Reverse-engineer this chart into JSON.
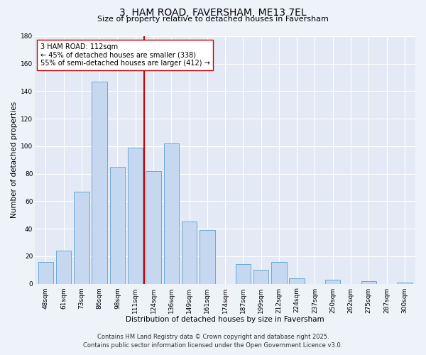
{
  "title": "3, HAM ROAD, FAVERSHAM, ME13 7EL",
  "subtitle": "Size of property relative to detached houses in Faversham",
  "xlabel": "Distribution of detached houses by size in Faversham",
  "ylabel": "Number of detached properties",
  "bar_labels": [
    "48sqm",
    "61sqm",
    "73sqm",
    "86sqm",
    "98sqm",
    "111sqm",
    "124sqm",
    "136sqm",
    "149sqm",
    "161sqm",
    "174sqm",
    "187sqm",
    "199sqm",
    "212sqm",
    "224sqm",
    "237sqm",
    "250sqm",
    "262sqm",
    "275sqm",
    "287sqm",
    "300sqm"
  ],
  "bar_values": [
    16,
    24,
    67,
    147,
    85,
    99,
    82,
    102,
    45,
    39,
    0,
    14,
    10,
    16,
    4,
    0,
    3,
    0,
    2,
    0,
    1
  ],
  "bar_color": "#c5d8f0",
  "bar_edge_color": "#6aaad4",
  "vline_x_index": 5,
  "vline_color": "#cc0000",
  "annotation_line1": "3 HAM ROAD: 112sqm",
  "annotation_line2": "← 45% of detached houses are smaller (338)",
  "annotation_line3": "55% of semi-detached houses are larger (412) →",
  "annotation_box_color": "#ffffff",
  "annotation_box_edge_color": "#cc0000",
  "ylim": [
    0,
    180
  ],
  "yticks": [
    0,
    20,
    40,
    60,
    80,
    100,
    120,
    140,
    160,
    180
  ],
  "footer1": "Contains HM Land Registry data © Crown copyright and database right 2025.",
  "footer2": "Contains public sector information licensed under the Open Government Licence v3.0.",
  "bg_color": "#eef2f9",
  "plot_bg_color": "#e4eaf5",
  "grid_color": "#ffffff",
  "title_fontsize": 10,
  "subtitle_fontsize": 8,
  "axis_label_fontsize": 7.5,
  "tick_fontsize": 6.5,
  "annotation_fontsize": 7,
  "footer_fontsize": 6
}
